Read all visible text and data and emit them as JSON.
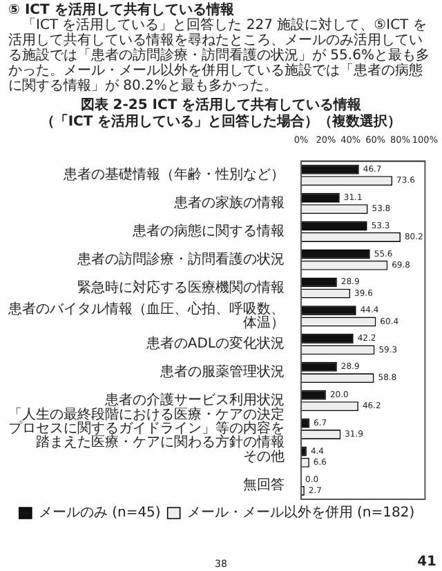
{
  "chart_data": {
    "type": "bar",
    "orientation": "horizontal",
    "title": "図表 2-25 ICT を活用して共有している情報",
    "subtitle": "（「ICT を活用している」と回答した場合）（複数選択）",
    "annotations": [
      "⑤ ICT を活用して共有している情報",
      "「ICT を活用している」と回答した 227 施設に対して、⑤ICT を活用して共有している情報を尋ねたところ、メールのみ活用している施設では「患者の訪問診療・訪問看護の状況」が 55.6%と最も多かった。メール・メール以外を併用している施設では「患者の病態に関する情報」が 80.2%と最も多かった。",
      "38",
      "41"
    ],
    "categories": [
      "患者の基礎情報（年齢・性別など）",
      "患者の家族の情報",
      "患者の病態に関する情報",
      "患者の訪問診療・訪問看護の状況",
      "緊急時に対応する医療機関の情報",
      "患者のバイタル情報（血圧、心拍、呼吸数、体温）",
      "患者のADLの変化状況",
      "患者の服薬管理状況",
      "患者の介護サービス利用状況",
      "「人生の最終段階における医療・ケアの決定プロセスに関するガイドライン」等の内容を踏まえた医療・ケアに関わる方針の情報",
      "その他",
      "無回答"
    ],
    "series": [
      {
        "name": "メールのみ (n=45)",
        "color": "#111111",
        "values": [
          46.7,
          31.1,
          53.3,
          55.6,
          28.9,
          44.4,
          42.2,
          28.9,
          20.0,
          6.7,
          4.4,
          0.0
        ],
        "value_labels": [
          "46.7",
          "31.1",
          "53.3",
          "55.6",
          "28.9",
          "44.4",
          "42.2",
          "28.9",
          "20.0",
          "6.7",
          "4.4",
          "0.0"
        ]
      },
      {
        "name": "メール・メール以外を併用 (n=182)",
        "color": "#eeeeee",
        "values": [
          73.6,
          53.8,
          80.2,
          69.8,
          39.6,
          60.4,
          59.3,
          58.8,
          46.2,
          31.9,
          6.6,
          2.7
        ],
        "value_labels": [
          "73.6",
          "53.8",
          "80.2",
          "69.8",
          "39.6",
          "60.4",
          "59.3",
          "58.8",
          "46.2",
          "31.9",
          "6.6",
          "2.7"
        ]
      }
    ],
    "xlim": [
      0,
      100
    ],
    "xticks": [
      {
        "value": 0,
        "label": "0%"
      },
      {
        "value": 20,
        "label": "20%"
      },
      {
        "value": 40,
        "label": "40%"
      },
      {
        "value": 60,
        "label": "60%"
      },
      {
        "value": 80,
        "label": "80%"
      },
      {
        "value": 100,
        "label": "100%"
      }
    ],
    "grid": false,
    "legend": "bottom"
  }
}
